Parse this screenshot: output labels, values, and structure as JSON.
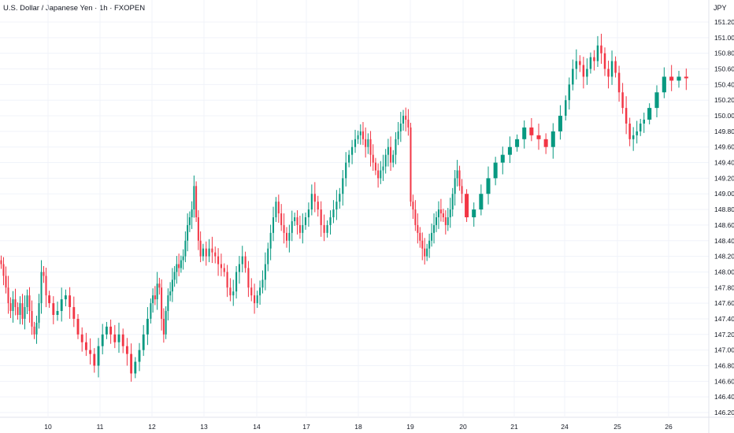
{
  "header": {
    "title": "U.S. Dollar / Japanese Yen · 1h · FXOPEN",
    "currency": "JPY"
  },
  "colors": {
    "up": "#089981",
    "down": "#f23645",
    "grid": "#f0f3fa",
    "axis_line": "#e0e3eb",
    "background": "#ffffff"
  },
  "chart_data": {
    "type": "candlestick",
    "title": "U.S. Dollar / Japanese Yen · 1h · FXOPEN",
    "ylabel": "JPY",
    "ylim": [
      146.08,
      151.52
    ],
    "grid": true,
    "y_ticks": [
      146.2,
      146.4,
      146.6,
      146.8,
      147.0,
      147.2,
      147.4,
      147.6,
      147.8,
      148.0,
      148.2,
      148.4,
      148.6,
      148.8,
      149.0,
      149.2,
      149.4,
      149.6,
      149.8,
      150.0,
      150.2,
      150.4,
      150.6,
      150.8,
      151.0,
      151.2
    ],
    "x_ticks": [
      "10",
      "11",
      "12",
      "13",
      "14",
      "17",
      "18",
      "19",
      "20",
      "21",
      "24",
      "25",
      "26"
    ],
    "series": [
      {
        "x_tick": "10",
        "closes": [
          148.1,
          147.95,
          147.8,
          147.6,
          147.5,
          147.65,
          147.55,
          147.45,
          147.6,
          147.4,
          147.55,
          147.7,
          147.5,
          147.3,
          147.2,
          147.35,
          147.6,
          148.0,
          147.95,
          147.7
        ]
      },
      {
        "x_tick": "11",
        "closes": [
          147.6,
          147.45,
          147.5,
          147.65,
          147.7,
          147.55,
          147.4,
          147.2,
          147.1,
          147.0,
          146.95,
          146.8,
          147.05,
          147.2,
          147.3,
          147.2,
          147.1,
          147.2,
          147.05,
          146.95,
          146.7,
          146.85,
          147.0,
          147.2,
          147.4
        ]
      },
      {
        "x_tick": "12",
        "closes": [
          147.6,
          147.7,
          147.65,
          147.85,
          147.8,
          147.4,
          147.2,
          147.5,
          147.7,
          147.75,
          147.9,
          148.0,
          148.1,
          148.05,
          148.15,
          148.2,
          148.4,
          148.6,
          148.7,
          148.8,
          149.1,
          148.7,
          148.4,
          148.2
        ]
      },
      {
        "x_tick": "13",
        "closes": [
          148.3,
          148.2,
          148.3,
          148.25,
          148.2,
          148.1,
          148.05,
          148.0,
          147.8,
          147.7,
          147.75,
          148.0,
          148.1,
          148.2,
          148.05,
          147.8,
          147.7,
          147.6
        ]
      },
      {
        "x_tick": "14",
        "closes": [
          147.7,
          147.8,
          147.9,
          148.1,
          148.3,
          148.5,
          148.7,
          148.9,
          148.75,
          148.6,
          148.5,
          148.4,
          148.5,
          148.65,
          148.7,
          148.6,
          148.5,
          148.6
        ]
      },
      {
        "x_tick": "17",
        "closes": [
          148.7,
          148.8,
          149.0,
          148.9,
          148.8,
          148.6,
          148.5,
          148.6,
          148.7,
          148.8,
          148.9,
          149.0,
          149.2,
          149.4,
          149.5,
          149.6,
          149.7
        ]
      },
      {
        "x_tick": "18",
        "closes": [
          149.75,
          149.8,
          149.7,
          149.6,
          149.7,
          149.5,
          149.4,
          149.3,
          149.2,
          149.3,
          149.35,
          149.5,
          149.6,
          149.4,
          149.5,
          149.7,
          149.8,
          149.9,
          150.0,
          149.95,
          149.85
        ]
      },
      {
        "x_tick": "19",
        "closes": [
          148.9,
          148.8,
          148.6,
          148.5,
          148.4,
          148.3,
          148.2,
          148.3,
          148.4,
          148.5,
          148.6,
          148.7,
          148.8,
          148.75,
          148.7,
          148.6,
          148.7,
          148.8,
          149.0,
          149.2,
          149.3,
          149.1,
          149.0
        ]
      },
      {
        "x_tick": "21",
        "closes": [
          148.7,
          148.8,
          149.0,
          149.2,
          149.4,
          149.5,
          149.6,
          149.7,
          149.85,
          149.75,
          149.7,
          149.6,
          149.8,
          150.0
        ]
      },
      {
        "x_tick": "24",
        "closes": [
          150.2,
          150.4,
          150.6,
          150.7,
          150.65,
          150.5,
          150.6,
          150.75,
          150.7,
          150.9,
          150.8,
          150.6,
          150.5,
          150.7,
          150.55,
          150.3,
          150.1,
          149.9,
          149.7,
          149.75,
          149.8,
          149.9,
          149.95
        ]
      },
      {
        "x_tick": "26",
        "closes": [
          150.1,
          150.3,
          150.5,
          150.45,
          150.5,
          150.48
        ]
      }
    ]
  }
}
